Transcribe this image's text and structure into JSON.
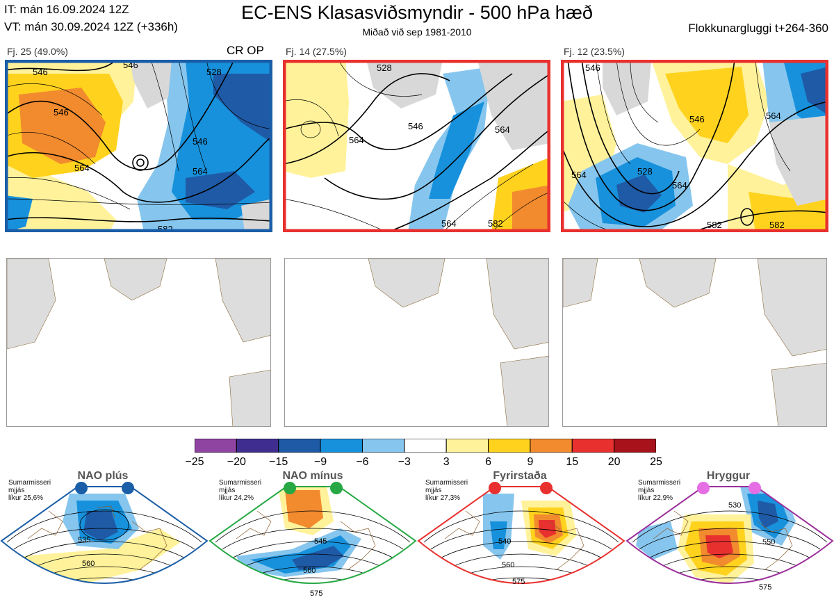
{
  "header": {
    "it": "IT: mán 16.09.2024 12Z",
    "vt": "VT: mán 30.09.2024 12Z  (+336h)",
    "title": "EC-ENS Klasasviðsmyndir - 500 hPa hæð",
    "subtitle": "Miðað við sep 1981-2010",
    "window": "Flokkunargluggi t+264-360"
  },
  "clusters": [
    {
      "label": "Fj. 25 (49.0%)",
      "tag": "CR OP",
      "border_color": "#1a5ea8",
      "contour_labels": [
        "546",
        "546",
        "564",
        "546",
        "564",
        "546",
        "528",
        "582"
      ]
    },
    {
      "label": "Fj. 14 (27.5%)",
      "tag": "",
      "border_color": "#e8312f",
      "contour_labels": [
        "528",
        "546",
        "564",
        "564",
        "564",
        "582"
      ]
    },
    {
      "label": "Fj. 12 (23.5%)",
      "tag": "",
      "border_color": "#e8312f",
      "contour_labels": [
        "528",
        "546",
        "564",
        "564",
        "546",
        "564",
        "582",
        "582"
      ]
    }
  ],
  "colorbar": {
    "ticks": [
      "−25",
      "−20",
      "−15",
      "−9",
      "−6",
      "−3",
      "3",
      "6",
      "9",
      "15",
      "20",
      "25"
    ],
    "colors": [
      "#8e44a0",
      "#3f2e8f",
      "#1f5aa6",
      "#1891dc",
      "#86c6ee",
      "#ffffff",
      "#fff29a",
      "#ffd21e",
      "#f28a2e",
      "#e8312f",
      "#a8121b"
    ]
  },
  "regimes": [
    {
      "title": "NAO plús",
      "note": [
        "Sumarmisseri",
        "mjjás",
        "líkur 25,6%"
      ],
      "color": "#1a5ea8",
      "contour_labels": [
        "535",
        "560"
      ]
    },
    {
      "title": "NAO mínus",
      "note": [
        "Sumarmisseri",
        "mjjás",
        "líkur 24,2%"
      ],
      "color": "#27a844",
      "contour_labels": [
        "545",
        "560",
        "575"
      ]
    },
    {
      "title": "Fyrirstaða",
      "note": [
        "Sumarmisseri",
        "mjjás",
        "líkur 27,3%"
      ],
      "color": "#e8312f",
      "contour_labels": [
        "540",
        "560",
        "575"
      ]
    },
    {
      "title": "Hryggur",
      "note": [
        "Sumarmisseri",
        "mjjás",
        "líkur 22,9%"
      ],
      "color": "#9b2f9b",
      "contour_labels": [
        "530",
        "550",
        "575"
      ]
    }
  ]
}
